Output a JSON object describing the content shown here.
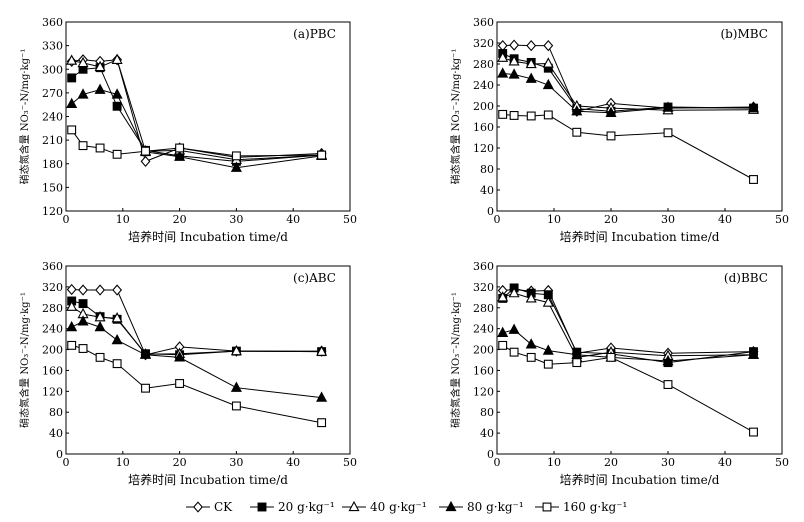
{
  "legend": [
    {
      "name": "CK",
      "marker": "diamond-open"
    },
    {
      "name": "20 g·kg⁻¹",
      "marker": "square-filled"
    },
    {
      "name": "40 g·kg⁻¹",
      "marker": "triangle-open"
    },
    {
      "name": "80 g·kg⁻¹",
      "marker": "triangle-filled"
    },
    {
      "name": "160 g·kg⁻¹",
      "marker": "square-open"
    }
  ],
  "colors": {
    "ink": "#000000",
    "background": "#ffffff"
  },
  "chart_data": [
    {
      "type": "line",
      "title": "(a)PBC",
      "xlabel": "培养时间 Incubation time/d",
      "ylabel": "硝态氮含量 NO₃⁻-N/mg·kg⁻¹",
      "xlim": [
        0,
        50
      ],
      "ylim": [
        120,
        360
      ],
      "xticks": [
        "0",
        "10",
        "20",
        "30",
        "40",
        "50"
      ],
      "yticks": [
        "120",
        "150",
        "180",
        "210",
        "240",
        "270",
        "300",
        "330",
        "360"
      ],
      "x": [
        1,
        3,
        6,
        9,
        14,
        20,
        30,
        45
      ],
      "series": [
        {
          "name": "CK",
          "marker": "diamond-open",
          "values": [
            310,
            312,
            310,
            312,
            183,
            200,
            188,
            193
          ]
        },
        {
          "name": "20 g·kg⁻¹",
          "marker": "square-filled",
          "values": [
            289,
            300,
            302,
            253,
            197,
            190,
            183,
            191
          ]
        },
        {
          "name": "40 g·kg⁻¹",
          "marker": "triangle-open",
          "values": [
            311,
            308,
            303,
            312,
            196,
            197,
            185,
            191
          ]
        },
        {
          "name": "80 g·kg⁻¹",
          "marker": "triangle-filled",
          "values": [
            256,
            268,
            274,
            268,
            195,
            189,
            175,
            190
          ]
        },
        {
          "name": "160 g·kg⁻¹",
          "marker": "square-open",
          "values": [
            223,
            203,
            200,
            192,
            196,
            200,
            190,
            191
          ]
        }
      ]
    },
    {
      "type": "line",
      "title": "(b)MBC",
      "xlabel": "培养时间 Incubation time/d",
      "ylabel": "硝态氮含量 NO₃⁻-N/mg·kg⁻¹",
      "xlim": [
        0,
        50
      ],
      "ylim": [
        0,
        360
      ],
      "xticks": [
        "0",
        "10",
        "20",
        "30",
        "40",
        "50"
      ],
      "yticks": [
        "0",
        "40",
        "80",
        "120",
        "160",
        "200",
        "240",
        "280",
        "320",
        "360"
      ],
      "x": [
        1,
        3,
        6,
        9,
        14,
        20,
        30,
        45
      ],
      "series": [
        {
          "name": "CK",
          "marker": "diamond-open",
          "values": [
            315,
            316,
            315,
            315,
            190,
            205,
            196,
            198
          ]
        },
        {
          "name": "20 g·kg⁻¹",
          "marker": "square-filled",
          "values": [
            300,
            290,
            283,
            272,
            195,
            190,
            198,
            196
          ]
        },
        {
          "name": "40 g·kg⁻¹",
          "marker": "triangle-open",
          "values": [
            292,
            285,
            280,
            281,
            200,
            196,
            192,
            193
          ]
        },
        {
          "name": "80 g·kg⁻¹",
          "marker": "triangle-filled",
          "values": [
            262,
            260,
            252,
            240,
            190,
            187,
            197,
            196
          ]
        },
        {
          "name": "160 g·kg⁻¹",
          "marker": "square-open",
          "values": [
            184,
            182,
            181,
            183,
            150,
            143,
            149,
            60
          ]
        }
      ]
    },
    {
      "type": "line",
      "title": "(c)ABC",
      "xlabel": "培养时间 Incubation time/d",
      "ylabel": "硝态氮含量 NO₃⁻-N/mg·kg⁻¹",
      "xlim": [
        0,
        50
      ],
      "ylim": [
        0,
        360
      ],
      "xticks": [
        "0",
        "10",
        "20",
        "30",
        "40",
        "50"
      ],
      "yticks": [
        "0",
        "40",
        "80",
        "120",
        "160",
        "200",
        "240",
        "280",
        "320",
        "360"
      ],
      "x": [
        1,
        3,
        6,
        9,
        14,
        20,
        30,
        45
      ],
      "series": [
        {
          "name": "CK",
          "marker": "diamond-open",
          "values": [
            315,
            314,
            314,
            314,
            190,
            205,
            197,
            197
          ]
        },
        {
          "name": "20 g·kg⁻¹",
          "marker": "square-filled",
          "values": [
            293,
            288,
            263,
            258,
            192,
            190,
            197,
            196
          ]
        },
        {
          "name": "40 g·kg⁻¹",
          "marker": "triangle-open",
          "values": [
            282,
            268,
            262,
            260,
            191,
            192,
            197,
            196
          ]
        },
        {
          "name": "80 g·kg⁻¹",
          "marker": "triangle-filled",
          "values": [
            243,
            254,
            243,
            218,
            190,
            185,
            127,
            108
          ]
        },
        {
          "name": "160 g·kg⁻¹",
          "marker": "square-open",
          "values": [
            208,
            202,
            185,
            173,
            126,
            135,
            92,
            60
          ]
        }
      ]
    },
    {
      "type": "line",
      "title": "(d)BBC",
      "xlabel": "培养时间 Incubation time/d",
      "ylabel": "硝态氮含量 NO₃⁻-N/mg·kg⁻¹",
      "xlim": [
        0,
        50
      ],
      "ylim": [
        0,
        360
      ],
      "xticks": [
        "0",
        "10",
        "20",
        "30",
        "40",
        "50"
      ],
      "yticks": [
        "0",
        "40",
        "80",
        "120",
        "160",
        "200",
        "240",
        "280",
        "320",
        "360"
      ],
      "x": [
        1,
        3,
        6,
        9,
        14,
        20,
        30,
        45
      ],
      "series": [
        {
          "name": "CK",
          "marker": "diamond-open",
          "values": [
            313,
            315,
            312,
            313,
            193,
            203,
            193,
            196
          ]
        },
        {
          "name": "20 g·kg⁻¹",
          "marker": "square-filled",
          "values": [
            298,
            318,
            308,
            305,
            195,
            192,
            175,
            196
          ]
        },
        {
          "name": "40 g·kg⁻¹",
          "marker": "triangle-open",
          "values": [
            300,
            308,
            298,
            290,
            185,
            195,
            188,
            190
          ]
        },
        {
          "name": "80 g·kg⁻¹",
          "marker": "triangle-filled",
          "values": [
            232,
            238,
            210,
            198,
            190,
            185,
            178,
            190
          ]
        },
        {
          "name": "160 g·kg⁻¹",
          "marker": "square-open",
          "values": [
            208,
            195,
            185,
            172,
            175,
            185,
            133,
            42
          ]
        }
      ]
    }
  ]
}
